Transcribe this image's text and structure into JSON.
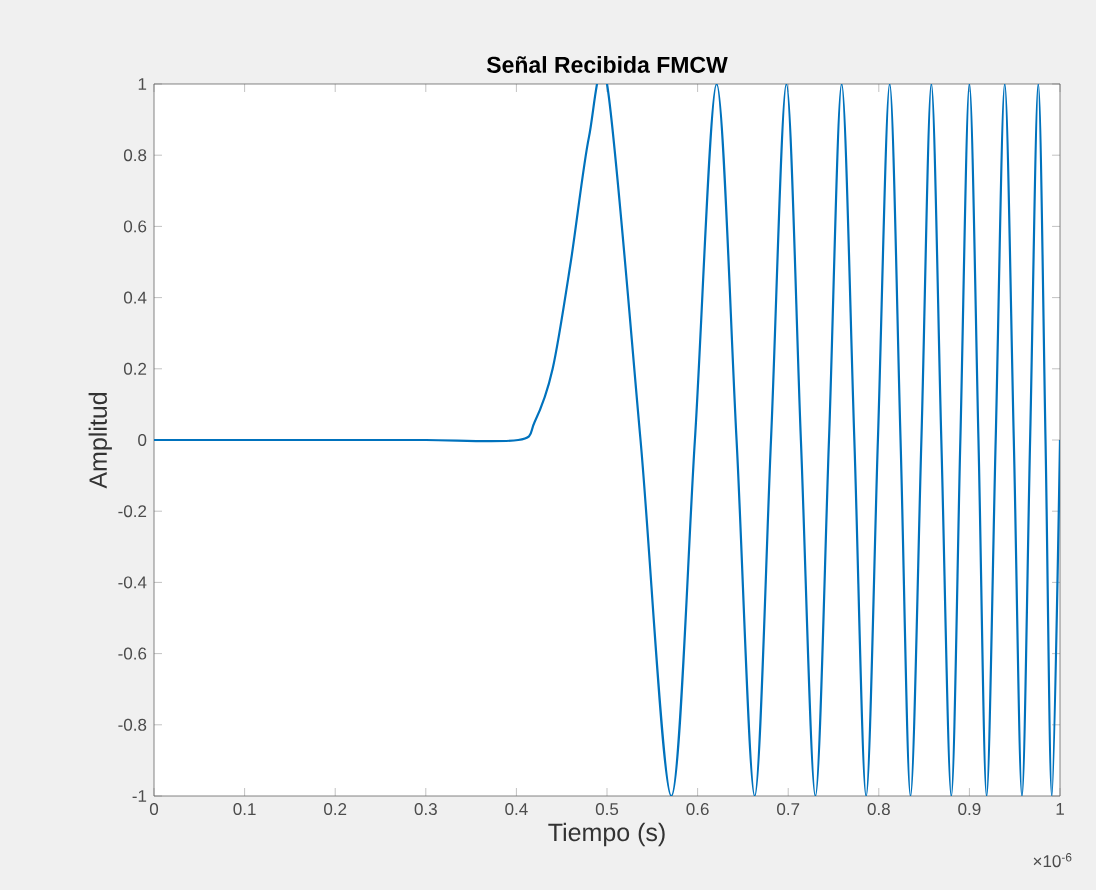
{
  "chart_data": {
    "type": "line",
    "title": "Señal Recibida FMCW",
    "xlabel": "Tiempo (s)",
    "ylabel": "Amplitud",
    "x": [
      0,
      0.1,
      0.2,
      0.3,
      0.402,
      0.42,
      0.44,
      0.46,
      0.48,
      0.5,
      0.537,
      0.571,
      0.597,
      0.621,
      0.643,
      0.663,
      0.681,
      0.698,
      0.714,
      0.73,
      0.745,
      0.759,
      0.773,
      0.786,
      0.799,
      0.812,
      0.824,
      0.835,
      0.847,
      0.858,
      0.869,
      0.88,
      0.89,
      0.9,
      0.91,
      0.919,
      0.929,
      0.939,
      0.949,
      0.958,
      0.967,
      0.976,
      0.984,
      0.991,
      1.0
    ],
    "series": [
      {
        "color": "#0072bd",
        "values": [
          0,
          0,
          0,
          0,
          0,
          0.05,
          0.2,
          0.5,
          0.85,
          1,
          0,
          -1,
          0,
          1,
          0,
          -1,
          0,
          1,
          0,
          -1,
          0,
          1,
          0,
          -1,
          0,
          1,
          0,
          -1,
          0,
          1,
          0,
          -1,
          0,
          1,
          0,
          -1,
          0,
          1,
          0,
          -1,
          0,
          1,
          0,
          -1,
          0
        ]
      }
    ],
    "xlim": [
      0,
      1
    ],
    "ylim": [
      -1,
      1
    ],
    "xticks": [
      0,
      0.1,
      0.2,
      0.3,
      0.4,
      0.5,
      0.6,
      0.7,
      0.8,
      0.9,
      1
    ],
    "yticks": [
      -1,
      -0.8,
      -0.6,
      -0.4,
      -0.2,
      0,
      0.2,
      0.4,
      0.6,
      0.8,
      1
    ],
    "annotations": [
      "×10$^{-6}$"
    ]
  }
}
